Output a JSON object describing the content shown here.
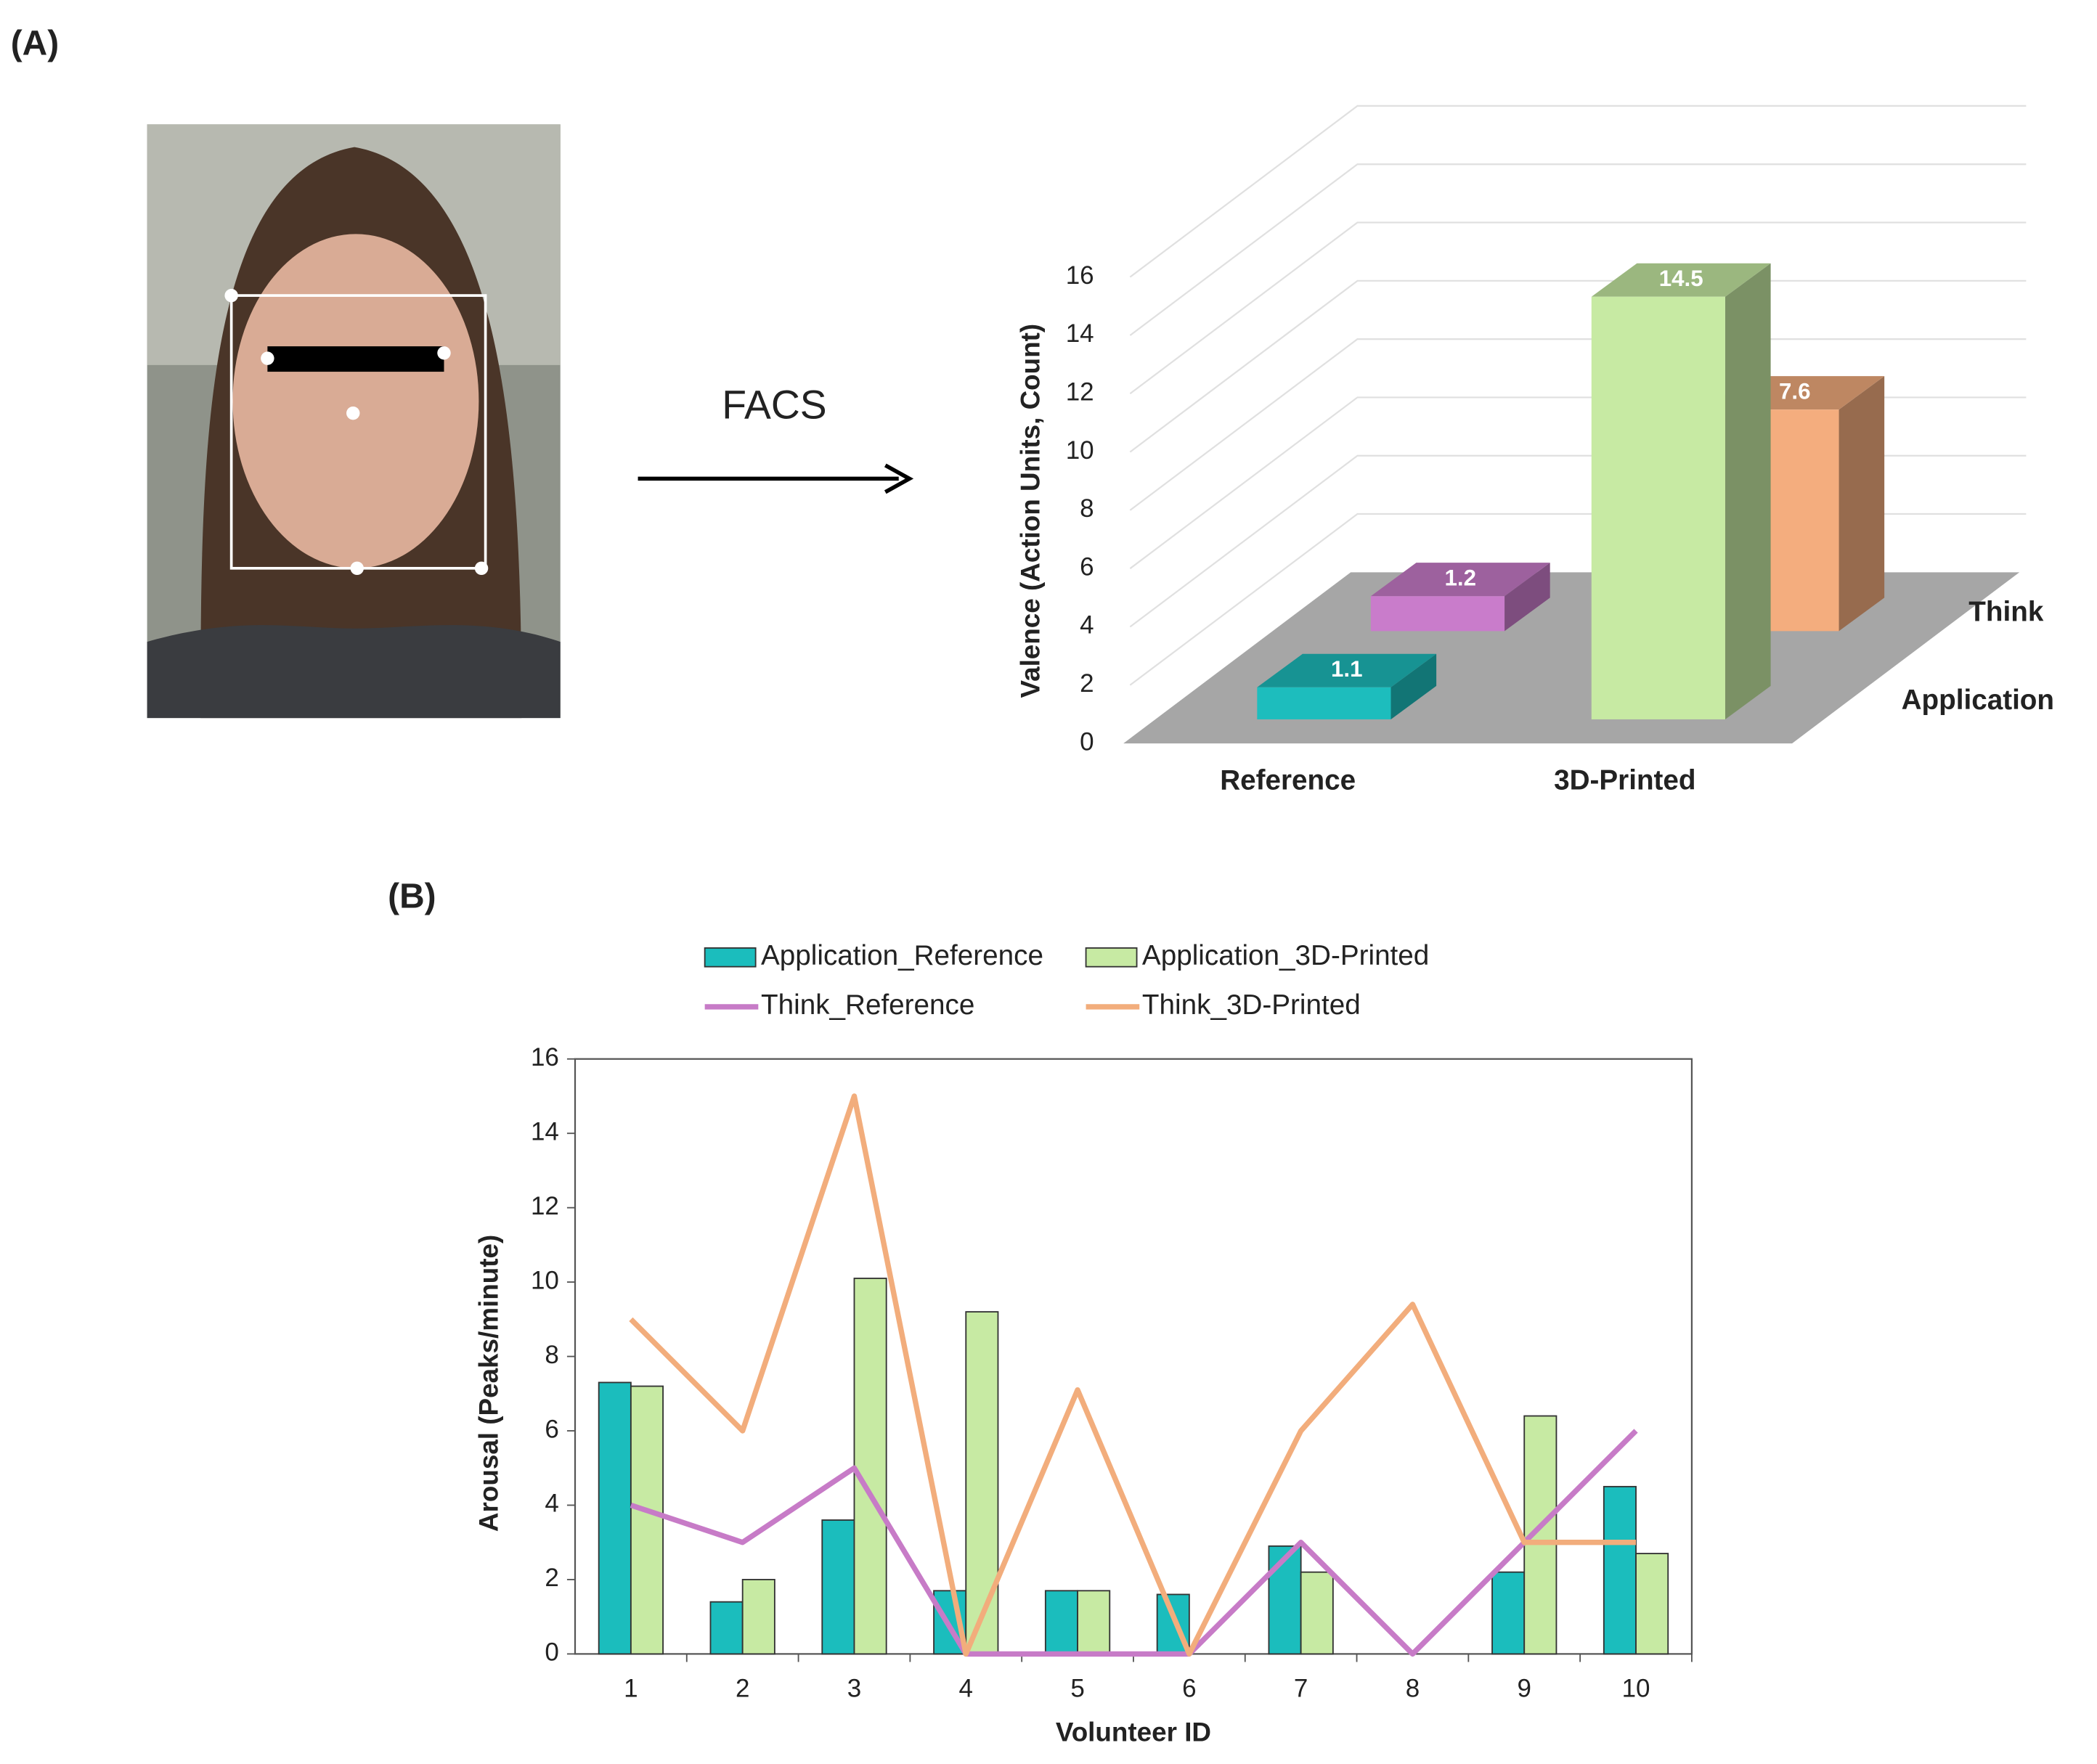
{
  "labels": {
    "panel_a": "(A)",
    "arrow": "FACS",
    "panel_b": "(B)"
  },
  "chart_data": [
    {
      "type": "bar3d",
      "categories": [
        "Reference",
        "3D-Printed"
      ],
      "series": [
        {
          "name": "Application",
          "colors": [
            "#1dbdbd",
            "#c7eaa3"
          ],
          "values": [
            1.1,
            14.5
          ]
        },
        {
          "name": "Think",
          "colors": [
            "#c97ccb",
            "#f4ad7e"
          ],
          "values": [
            1.2,
            7.6
          ]
        }
      ],
      "ylabel": "Valence (Action Units, Count)",
      "ylim": [
        0,
        16
      ],
      "yticks": [
        0,
        2,
        4,
        6,
        8,
        10,
        12,
        14,
        16
      ],
      "grid": true
    },
    {
      "type": "combo",
      "categories": [
        1,
        2,
        3,
        4,
        5,
        6,
        7,
        8,
        9,
        10
      ],
      "series": [
        {
          "name": "Application_Reference",
          "kind": "bar",
          "color": "#1bbdbd",
          "values": [
            7.3,
            1.4,
            3.6,
            1.7,
            1.7,
            1.6,
            2.9,
            0,
            2.2,
            4.5
          ]
        },
        {
          "name": "Application_3D-Printed",
          "kind": "bar",
          "color": "#c7eaa3",
          "values": [
            7.2,
            2.0,
            10.1,
            9.2,
            1.7,
            0,
            2.2,
            0,
            6.4,
            2.7
          ]
        },
        {
          "name": "Think_Reference",
          "kind": "line",
          "color": "#c77bc7",
          "values": [
            4,
            3,
            5,
            0,
            0,
            0,
            3,
            0,
            3,
            6
          ]
        },
        {
          "name": "Think_3D-Printed",
          "kind": "line",
          "color": "#f2ad7c",
          "values": [
            9,
            6,
            15,
            0,
            7.1,
            0,
            6,
            9.4,
            3,
            3
          ]
        }
      ],
      "xlabel": "Volunteer ID",
      "ylabel": "Arousal (Peaks/minute)",
      "ylim": [
        0,
        16
      ],
      "yticks": [
        0,
        2,
        4,
        6,
        8,
        10,
        12,
        14,
        16
      ]
    }
  ]
}
